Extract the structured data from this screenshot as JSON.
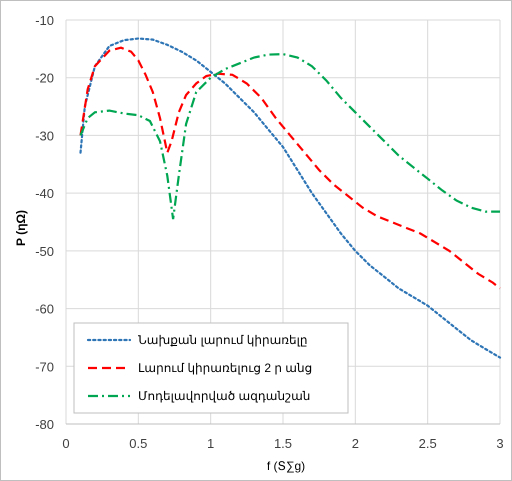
{
  "chart_data": {
    "type": "line",
    "xlabel": "f (Տ∑g)",
    "ylabel": "P (ηΩ)",
    "xlim": [
      0,
      3
    ],
    "ylim": [
      -80,
      -10
    ],
    "x_ticks": [
      "0",
      "0.5",
      "1",
      "1.5",
      "2",
      "2.5",
      "3"
    ],
    "y_ticks": [
      "-10",
      "-20",
      "-30",
      "-40",
      "-50",
      "-60",
      "-70",
      "-80"
    ],
    "grid": true,
    "legend_position": "bottom-left",
    "series": [
      {
        "name": "Նախքան լարում կիրառելը",
        "color": "#2e75b6",
        "dash": "dotted",
        "points": [
          [
            0.1,
            -33
          ],
          [
            0.13,
            -25
          ],
          [
            0.2,
            -18
          ],
          [
            0.3,
            -14.5
          ],
          [
            0.4,
            -13.5
          ],
          [
            0.5,
            -13.2
          ],
          [
            0.6,
            -13.4
          ],
          [
            0.7,
            -14.3
          ],
          [
            0.8,
            -15.5
          ],
          [
            0.9,
            -17
          ],
          [
            1.0,
            -19
          ],
          [
            1.1,
            -21
          ],
          [
            1.2,
            -23.5
          ],
          [
            1.3,
            -26
          ],
          [
            1.4,
            -29
          ],
          [
            1.5,
            -32
          ],
          [
            1.6,
            -36
          ],
          [
            1.7,
            -40
          ],
          [
            1.8,
            -43.5
          ],
          [
            1.9,
            -47
          ],
          [
            2.0,
            -50
          ],
          [
            2.1,
            -52.5
          ],
          [
            2.2,
            -54.5
          ],
          [
            2.3,
            -56.5
          ],
          [
            2.4,
            -58
          ],
          [
            2.5,
            -59.5
          ],
          [
            2.6,
            -61.5
          ],
          [
            2.7,
            -63.5
          ],
          [
            2.8,
            -65.5
          ],
          [
            2.9,
            -67
          ],
          [
            3.0,
            -68.5
          ]
        ]
      },
      {
        "name": "Լարում կիրառելուց 2 ր անց",
        "color": "#ff0000",
        "dash": "dashed",
        "points": [
          [
            0.1,
            -30
          ],
          [
            0.15,
            -22
          ],
          [
            0.2,
            -18
          ],
          [
            0.3,
            -15.3
          ],
          [
            0.38,
            -14.8
          ],
          [
            0.45,
            -15.5
          ],
          [
            0.5,
            -17
          ],
          [
            0.55,
            -19.5
          ],
          [
            0.6,
            -22.5
          ],
          [
            0.65,
            -27
          ],
          [
            0.7,
            -33
          ],
          [
            0.73,
            -31
          ],
          [
            0.78,
            -26
          ],
          [
            0.83,
            -23
          ],
          [
            0.9,
            -21
          ],
          [
            0.97,
            -19.7
          ],
          [
            1.05,
            -19.3
          ],
          [
            1.15,
            -19.5
          ],
          [
            1.25,
            -21
          ],
          [
            1.35,
            -23.5
          ],
          [
            1.45,
            -27
          ],
          [
            1.55,
            -30
          ],
          [
            1.65,
            -33
          ],
          [
            1.75,
            -36
          ],
          [
            1.85,
            -38.5
          ],
          [
            1.95,
            -40.5
          ],
          [
            2.05,
            -42.5
          ],
          [
            2.15,
            -44
          ],
          [
            2.25,
            -45
          ],
          [
            2.35,
            -46
          ],
          [
            2.45,
            -47
          ],
          [
            2.55,
            -48.5
          ],
          [
            2.65,
            -50
          ],
          [
            2.75,
            -52
          ],
          [
            2.85,
            -54
          ],
          [
            2.95,
            -55.5
          ],
          [
            3.0,
            -56.5
          ]
        ]
      },
      {
        "name": "Մոդելավորված ազդանշան",
        "color": "#00a651",
        "dash": "dashdot",
        "points": [
          [
            0.1,
            -30
          ],
          [
            0.15,
            -27
          ],
          [
            0.2,
            -26
          ],
          [
            0.3,
            -25.7
          ],
          [
            0.4,
            -26.2
          ],
          [
            0.5,
            -26.5
          ],
          [
            0.58,
            -27.5
          ],
          [
            0.65,
            -31
          ],
          [
            0.7,
            -37
          ],
          [
            0.74,
            -44.5
          ],
          [
            0.78,
            -37
          ],
          [
            0.83,
            -28
          ],
          [
            0.9,
            -22.5
          ],
          [
            1.0,
            -20
          ],
          [
            1.1,
            -18.5
          ],
          [
            1.2,
            -17.5
          ],
          [
            1.3,
            -16.5
          ],
          [
            1.4,
            -16
          ],
          [
            1.5,
            -15.9
          ],
          [
            1.6,
            -16.5
          ],
          [
            1.7,
            -18
          ],
          [
            1.8,
            -20.5
          ],
          [
            1.9,
            -23.5
          ],
          [
            2.0,
            -26
          ],
          [
            2.1,
            -28.5
          ],
          [
            2.2,
            -31
          ],
          [
            2.3,
            -33.5
          ],
          [
            2.4,
            -35.5
          ],
          [
            2.5,
            -37.5
          ],
          [
            2.6,
            -39.5
          ],
          [
            2.7,
            -41.3
          ],
          [
            2.8,
            -42.5
          ],
          [
            2.9,
            -43.2
          ],
          [
            3.0,
            -43.2
          ]
        ]
      }
    ]
  }
}
